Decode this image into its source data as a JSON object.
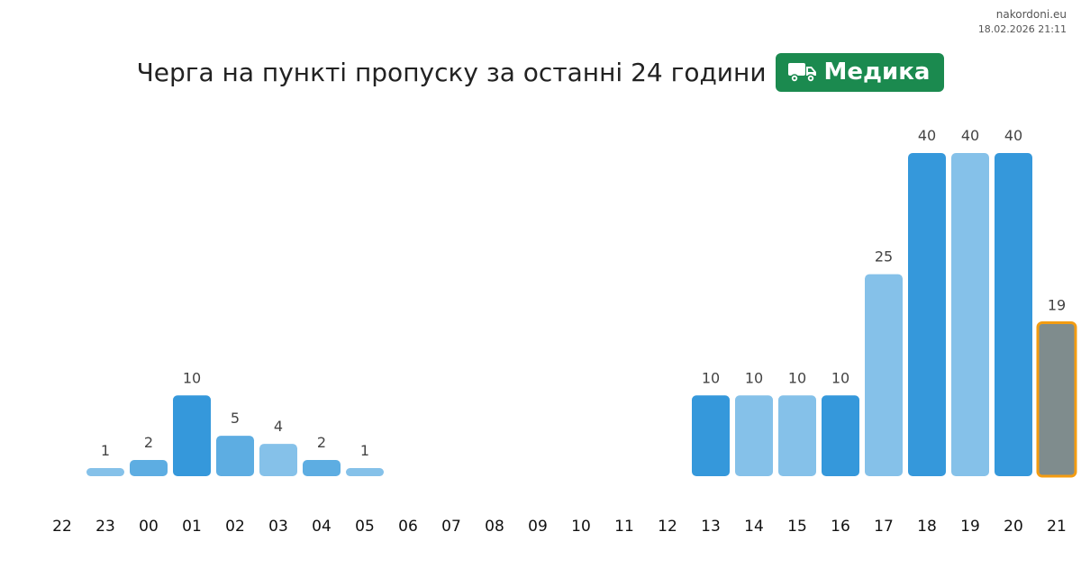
{
  "header": {
    "site": "nakordoni.eu",
    "datetime": "18.02.2026 21:11",
    "title": "Черга на пункті пропуску за останні 24 години",
    "badge_label": "Медика",
    "badge_icon": "truck-icon"
  },
  "colors": {
    "dark_blue": "#3598db",
    "mid_blue": "#5dade2",
    "light_blue": "#85c1e9",
    "current_fill": "#7f8c8d",
    "current_border": "#f39c12",
    "badge_bg": "#1b8a4f",
    "label": "#444444"
  },
  "chart_data": {
    "type": "bar",
    "categories": [
      "22",
      "23",
      "00",
      "01",
      "02",
      "03",
      "04",
      "05",
      "06",
      "07",
      "08",
      "09",
      "10",
      "11",
      "12",
      "13",
      "14",
      "15",
      "16",
      "17",
      "18",
      "19",
      "20",
      "21"
    ],
    "values": [
      0,
      1,
      2,
      10,
      5,
      4,
      2,
      1,
      0,
      0,
      0,
      0,
      0,
      0,
      0,
      10,
      10,
      10,
      10,
      25,
      40,
      40,
      40,
      19
    ],
    "data_labels": [
      "",
      "1",
      "2",
      "10",
      "5",
      "4",
      "2",
      "1",
      "",
      "",
      "",
      "",
      "",
      "",
      "",
      "10",
      "10",
      "10",
      "10",
      "25",
      "40",
      "40",
      "40",
      "19"
    ],
    "bar_colors": [
      "#85c1e9",
      "#85c1e9",
      "#5dade2",
      "#3598db",
      "#5dade2",
      "#85c1e9",
      "#5dade2",
      "#85c1e9",
      "#85c1e9",
      "#85c1e9",
      "#85c1e9",
      "#85c1e9",
      "#85c1e9",
      "#85c1e9",
      "#85c1e9",
      "#3598db",
      "#85c1e9",
      "#85c1e9",
      "#3598db",
      "#85c1e9",
      "#3598db",
      "#85c1e9",
      "#3598db",
      "#7f8c8d"
    ],
    "highlight_index": 23,
    "title": "Черга на пункті пропуску за останні 24 години",
    "xlabel": "",
    "ylabel": "",
    "ylim": [
      0,
      40
    ],
    "grid": false,
    "legend": "none"
  }
}
